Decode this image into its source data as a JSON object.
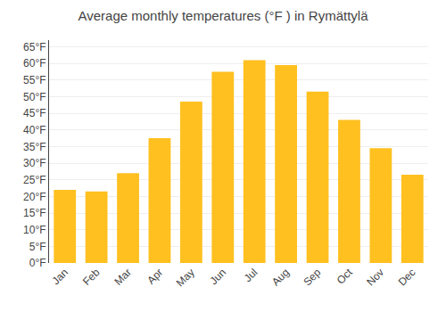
{
  "chart_data": {
    "type": "bar",
    "title": "Average monthly temperatures (°F ) in Rymättylä",
    "categories": [
      "Jan",
      "Feb",
      "Mar",
      "Apr",
      "May",
      "Jun",
      "Jul",
      "Aug",
      "Sep",
      "Oct",
      "Nov",
      "Dec"
    ],
    "values": [
      22,
      21.5,
      27,
      37.5,
      48.5,
      57.5,
      61,
      59.5,
      51.5,
      43,
      34.5,
      26.5
    ],
    "color": "#FFC020",
    "ylim": [
      0,
      67
    ],
    "yticks": [
      {
        "value": 0,
        "label": "0°F"
      },
      {
        "value": 5,
        "label": "5°F"
      },
      {
        "value": 10,
        "label": "10°F"
      },
      {
        "value": 15,
        "label": "15°F"
      },
      {
        "value": 20,
        "label": "20°F"
      },
      {
        "value": 25,
        "label": "25°F"
      },
      {
        "value": 30,
        "label": "30°F"
      },
      {
        "value": 35,
        "label": "35°F"
      },
      {
        "value": 40,
        "label": "40°F"
      },
      {
        "value": 45,
        "label": "45°F"
      },
      {
        "value": 50,
        "label": "50°F"
      },
      {
        "value": 55,
        "label": "55°F"
      },
      {
        "value": 60,
        "label": "60°F"
      },
      {
        "value": 65,
        "label": "65°F"
      }
    ],
    "grid": true
  }
}
